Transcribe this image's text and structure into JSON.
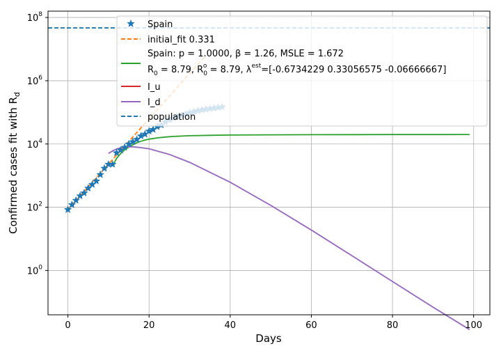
{
  "chart_data": {
    "type": "line",
    "xlabel": "Days",
    "ylabel_main": "Confirmed cases fit with R",
    "ylabel_sub": "d",
    "xlim": [
      -4.9,
      104
    ],
    "ylim_log10": [
      -1.4,
      8.2
    ],
    "y_scale": "log",
    "x_ticks": [
      0,
      20,
      40,
      60,
      80,
      100
    ],
    "x_tick_labels": [
      "0",
      "20",
      "40",
      "60",
      "80",
      "100"
    ],
    "y_ticks_log10": [
      0,
      2,
      4,
      6,
      8
    ],
    "y_tick_base": "10",
    "y_tick_exponents": [
      "0",
      "2",
      "4",
      "6",
      "8"
    ],
    "grid": true,
    "legend_position": "top-right",
    "colors": {
      "spain": "#1f77b4",
      "initial_fit": "#ff7f0e",
      "fit": "#2ca02c",
      "i_u": "#d62728",
      "i_d": "#9467bd",
      "population": "#1f77b4"
    },
    "legend": {
      "spain": "Spain",
      "initial_fit": "initial_fit 0.331",
      "fit_line1": "Spain: p = 1.0000,  β =  1.26, MSLE = 1.672",
      "fit_line2_a": " R",
      "fit_line2_sub1": "0",
      "fit_line2_b": " = 8.79, R",
      "fit_line2_sub2": "0",
      "fit_line2_sup2": "o",
      "fit_line2_c": " = 8.79, λ",
      "fit_line2_sup3": "est",
      "fit_line2_d": "=[-0.6734229   0.33056575 -0.06666667]",
      "i_u": "I_u",
      "i_d": "I_d",
      "population": "population"
    },
    "series": [
      {
        "key": "spain",
        "marker": "star",
        "x": [
          0,
          1,
          2,
          3,
          4,
          5,
          6,
          7,
          8,
          9,
          10,
          11,
          12,
          13,
          14,
          15,
          16,
          17,
          18,
          19,
          20,
          21,
          22,
          23,
          24,
          25,
          26,
          27,
          28,
          29,
          30,
          31,
          32,
          33,
          34,
          35,
          36,
          37,
          38
        ],
        "y": [
          84,
          120,
          165,
          228,
          282,
          401,
          525,
          674,
          1073,
          1695,
          2277,
          2277,
          5232,
          6391,
          7798,
          9942,
          11748,
          13910,
          17963,
          20410,
          25374,
          28603,
          35136,
          39885,
          49515,
          57786,
          65719,
          73235,
          80110,
          87956,
          95923,
          104118,
          112065,
          119199,
          126168,
          131646,
          136675,
          141942,
          148220
        ]
      },
      {
        "key": "initial_fit",
        "style": "dashed",
        "x": [
          0,
          34
        ],
        "y_log10": [
          1.93,
          6.8
        ]
      },
      {
        "key": "fit",
        "x": [
          11,
          12,
          13,
          14,
          15,
          16,
          17,
          18,
          19,
          20,
          22,
          24,
          26,
          28,
          30,
          35,
          40,
          50,
          60,
          70,
          80,
          90,
          99
        ],
        "y": [
          2000,
          3500,
          5000,
          6500,
          8000,
          9500,
          11000,
          12200,
          13300,
          14200,
          15600,
          16600,
          17300,
          17800,
          18200,
          18800,
          19200,
          19500,
          19700,
          19800,
          19850,
          19900,
          19950
        ]
      },
      {
        "key": "i_d",
        "x": [
          10,
          11,
          12,
          13,
          14,
          15,
          16,
          17,
          18,
          20,
          25,
          30,
          40,
          50,
          60,
          70,
          80,
          90,
          99
        ],
        "y_log10": [
          3.7,
          3.78,
          3.84,
          3.88,
          3.9,
          3.91,
          3.91,
          3.9,
          3.885,
          3.85,
          3.67,
          3.42,
          2.79,
          2.06,
          1.28,
          0.47,
          -0.35,
          -1.16,
          -1.87
        ]
      },
      {
        "key": "population",
        "style": "dashed",
        "y": 46750000
      }
    ]
  }
}
